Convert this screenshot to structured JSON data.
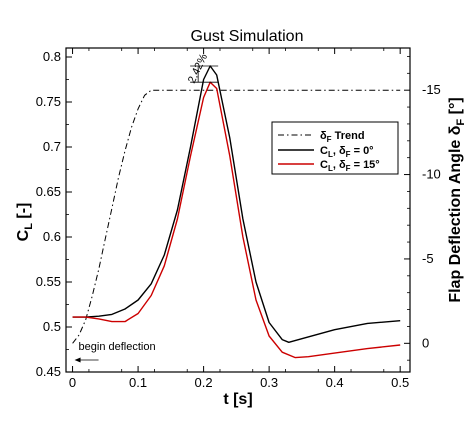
{
  "chart_data": {
    "type": "line",
    "title": "Gust Simulation",
    "xlabel": "t [s]",
    "ylabel": "C_L [-]",
    "y2label": "Flap Deflection Angle δ_F [°]",
    "xlim": [
      -0.01,
      0.515
    ],
    "ylim": [
      0.45,
      0.81
    ],
    "y2lim": [
      1.7,
      -17.5
    ],
    "x_ticks": [
      0,
      0.1,
      0.2,
      0.3,
      0.4,
      0.5
    ],
    "x_tick_labels": [
      "0",
      "0.1",
      "0.2",
      "0.3",
      "0.4",
      "0.5"
    ],
    "y_ticks": [
      0.45,
      0.5,
      0.55,
      0.6,
      0.65,
      0.7,
      0.75,
      0.8
    ],
    "y_tick_labels": [
      "0.45",
      "0.5",
      "0.55",
      "0.6",
      "0.65",
      "0.7",
      "0.75",
      "0.8"
    ],
    "y2_ticks": [
      0,
      -5,
      -10,
      -15
    ],
    "y2_tick_labels": [
      "0",
      "-5",
      "-10",
      "-15"
    ],
    "grid": false,
    "legend_position": "right",
    "series": [
      {
        "name": "δ_F Trend",
        "axis": "right",
        "style": "dash-dot",
        "color": "#000000",
        "x": [
          0,
          0.01,
          0.02,
          0.03,
          0.04,
          0.05,
          0.06,
          0.07,
          0.08,
          0.09,
          0.1,
          0.11,
          0.12,
          0.5
        ],
        "y": [
          0,
          -0.5,
          -1.4,
          -2.8,
          -4.4,
          -6.2,
          -8.0,
          -9.8,
          -11.4,
          -12.8,
          -13.9,
          -14.7,
          -15,
          -15
        ]
      },
      {
        "name": "C_L, δ_F = 0°",
        "axis": "left",
        "style": "solid",
        "color": "#000000",
        "x": [
          0,
          0.02,
          0.04,
          0.06,
          0.08,
          0.1,
          0.12,
          0.14,
          0.16,
          0.18,
          0.2,
          0.21,
          0.22,
          0.24,
          0.26,
          0.28,
          0.3,
          0.32,
          0.33,
          0.35,
          0.4,
          0.45,
          0.5
        ],
        "y": [
          0.511,
          0.511,
          0.512,
          0.514,
          0.52,
          0.53,
          0.548,
          0.58,
          0.63,
          0.7,
          0.775,
          0.79,
          0.78,
          0.71,
          0.62,
          0.55,
          0.505,
          0.486,
          0.483,
          0.487,
          0.497,
          0.504,
          0.507
        ]
      },
      {
        "name": "C_L, δ_F = 15°",
        "axis": "left",
        "style": "solid",
        "color": "#cc0000",
        "x": [
          0,
          0.02,
          0.04,
          0.06,
          0.08,
          0.1,
          0.12,
          0.14,
          0.16,
          0.18,
          0.2,
          0.21,
          0.22,
          0.24,
          0.26,
          0.28,
          0.3,
          0.32,
          0.34,
          0.36,
          0.4,
          0.45,
          0.5
        ],
        "y": [
          0.511,
          0.511,
          0.509,
          0.506,
          0.506,
          0.515,
          0.535,
          0.568,
          0.62,
          0.69,
          0.755,
          0.772,
          0.765,
          0.69,
          0.6,
          0.53,
          0.49,
          0.472,
          0.466,
          0.467,
          0.471,
          0.476,
          0.48
        ]
      }
    ],
    "annotations": {
      "peak_diff": "2.42%",
      "begin": "begin deflection"
    }
  }
}
